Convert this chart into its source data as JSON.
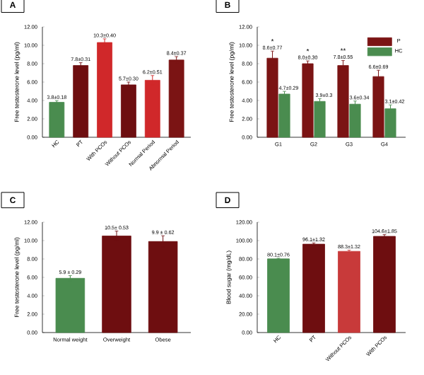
{
  "chart_data": [
    {
      "type": "bar",
      "title": "A",
      "ylabel": "Free testosterone level (pg/ml)",
      "categories": [
        "HC",
        "PT",
        "With PCOs",
        "Without PCOs",
        "Normal Period",
        "Abnormal Period"
      ],
      "values": [
        3.8,
        7.8,
        10.3,
        5.7,
        6.2,
        8.4
      ],
      "errors": [
        0.18,
        0.31,
        0.4,
        0.3,
        0.51,
        0.37
      ],
      "value_labels": [
        "3.8±0.18",
        "7.8±0.31",
        "10.3±0.40",
        "5.7±0.30",
        "6.2±0.51",
        "8.4±0.37"
      ],
      "colors": [
        "#4a8c4f",
        "#6e0e10",
        "#d0282a",
        "#6e0e10",
        "#d0282a",
        "#7b1414"
      ],
      "ylim": [
        0,
        12
      ],
      "yticks": [
        {
          "value": 0,
          "label": "0.00"
        },
        {
          "value": 2,
          "label": "2.00"
        },
        {
          "value": 4,
          "label": "4.00"
        },
        {
          "value": 6,
          "label": "6.00"
        },
        {
          "value": 8,
          "label": "8.00"
        },
        {
          "value": 10,
          "label": "10.00"
        },
        {
          "value": 12,
          "label": "12.00"
        }
      ]
    },
    {
      "type": "bar",
      "title": "B",
      "ylabel": "Free testosterone level (pg/ml)",
      "categories": [
        "G1",
        "G2",
        "G3",
        "G4"
      ],
      "series": [
        {
          "name": "P",
          "color": "#7b1414",
          "values": [
            8.6,
            8.0,
            7.8,
            6.6
          ],
          "errors": [
            0.77,
            0.3,
            0.55,
            0.69
          ],
          "value_labels": [
            "8.6±0.77",
            "8.0±0.30",
            "7.8±0.55",
            "6.6±0.69"
          ]
        },
        {
          "name": "HC",
          "color": "#4a8c4f",
          "values": [
            4.7,
            3.9,
            3.6,
            3.1
          ],
          "errors": [
            0.29,
            0.3,
            0.34,
            0.42
          ],
          "value_labels": [
            "4.7±0.29",
            "3.9±0.3",
            "3.6±0.34",
            "3.1±0.42"
          ]
        }
      ],
      "annotations": [
        "*",
        "*",
        "**"
      ],
      "legend": "top right",
      "ylim": [
        0,
        12
      ],
      "yticks": [
        {
          "value": 0,
          "label": "0.00"
        },
        {
          "value": 2,
          "label": "2.00"
        },
        {
          "value": 4,
          "label": "4.00"
        },
        {
          "value": 6,
          "label": "6.00"
        },
        {
          "value": 8,
          "label": "8.00"
        },
        {
          "value": 10,
          "label": "10.00"
        },
        {
          "value": 12,
          "label": "12.00"
        }
      ]
    },
    {
      "type": "bar",
      "title": "C",
      "ylabel": "Free testosterone level (pg/ml)",
      "categories": [
        "Normal weight",
        "Overweight",
        "Obese"
      ],
      "values": [
        5.9,
        10.5,
        9.9
      ],
      "errors": [
        0.29,
        0.53,
        0.62
      ],
      "value_labels": [
        "5.9 ± 0.29",
        "10.5± 0.53",
        "9.9 ± 0.62"
      ],
      "colors": [
        "#4a8c4f",
        "#6e0e10",
        "#6e0e10"
      ],
      "ylim": [
        0,
        12
      ],
      "yticks": [
        {
          "value": 0,
          "label": "0.00"
        },
        {
          "value": 2,
          "label": "2.00"
        },
        {
          "value": 4,
          "label": "4.00"
        },
        {
          "value": 6,
          "label": "6.00"
        },
        {
          "value": 8,
          "label": "8.00"
        },
        {
          "value": 10,
          "label": "10.00"
        },
        {
          "value": 12,
          "label": "12.00"
        }
      ]
    },
    {
      "type": "bar",
      "title": "D",
      "ylabel": "Blood sugar (mg/dL)",
      "categories": [
        "HC",
        "PT",
        "Without PCOs",
        "With PCOs"
      ],
      "values": [
        80.1,
        96.1,
        88.3,
        104.6
      ],
      "errors": [
        0.76,
        1.32,
        1.32,
        1.85
      ],
      "value_labels": [
        "80.1±0.76",
        "96.1±1.32",
        "88.3±1.32",
        "104.6±1.85"
      ],
      "colors": [
        "#4a8c4f",
        "#6e0e10",
        "#c83a3a",
        "#6e0e10"
      ],
      "ylim": [
        0,
        120
      ],
      "yticks": [
        {
          "value": 0,
          "label": "0.00"
        },
        {
          "value": 20,
          "label": "20.00"
        },
        {
          "value": 40,
          "label": "40.00"
        },
        {
          "value": 60,
          "label": "60.00"
        },
        {
          "value": 80,
          "label": "80.00"
        },
        {
          "value": 100,
          "label": "100.00"
        },
        {
          "value": 120,
          "label": "120.00"
        }
      ]
    }
  ]
}
